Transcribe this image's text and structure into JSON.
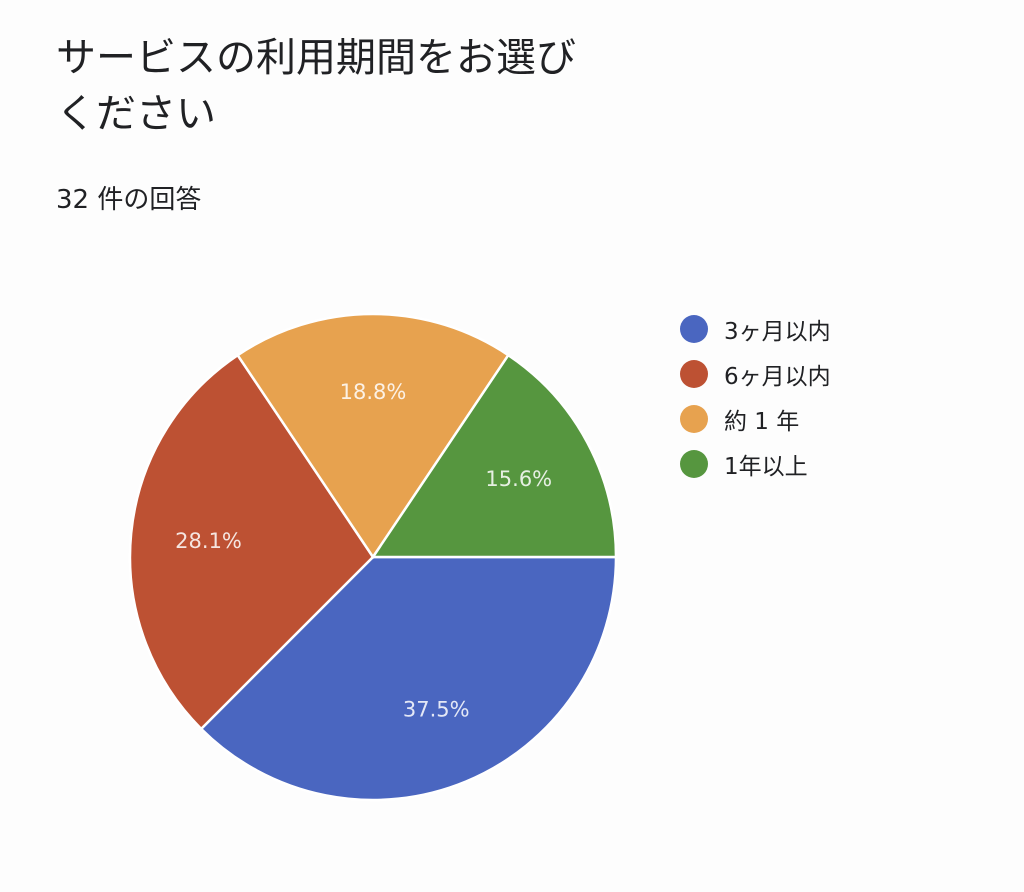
{
  "header": {
    "title": "サービスの利用期間をお選びください",
    "response_count": "32 件の回答"
  },
  "chart_data": {
    "type": "pie",
    "title": "サービスの利用期間をお選びください",
    "subtitle": "32 件の回答",
    "categories": [
      "3ヶ月以内",
      "6ヶ月以内",
      "約 1 年",
      "1年以上"
    ],
    "values": [
      37.5,
      28.1,
      18.8,
      15.6
    ],
    "counts": [
      12,
      9,
      6,
      5
    ],
    "labels": [
      "37.5%",
      "28.1%",
      "18.8%",
      "15.6%"
    ],
    "colors": [
      "#4a66c0",
      "#bd5133",
      "#e7a24f",
      "#56963f"
    ],
    "legend_position": "right",
    "start_angle": "3 o'clock, clockwise"
  },
  "legend": {
    "items": [
      {
        "label": "3ヶ月以内",
        "color": "#4a66c0"
      },
      {
        "label": "6ヶ月以内",
        "color": "#bd5133"
      },
      {
        "label": "約 1 年",
        "color": "#e7a24f"
      },
      {
        "label": "1年以上",
        "color": "#56963f"
      }
    ]
  }
}
